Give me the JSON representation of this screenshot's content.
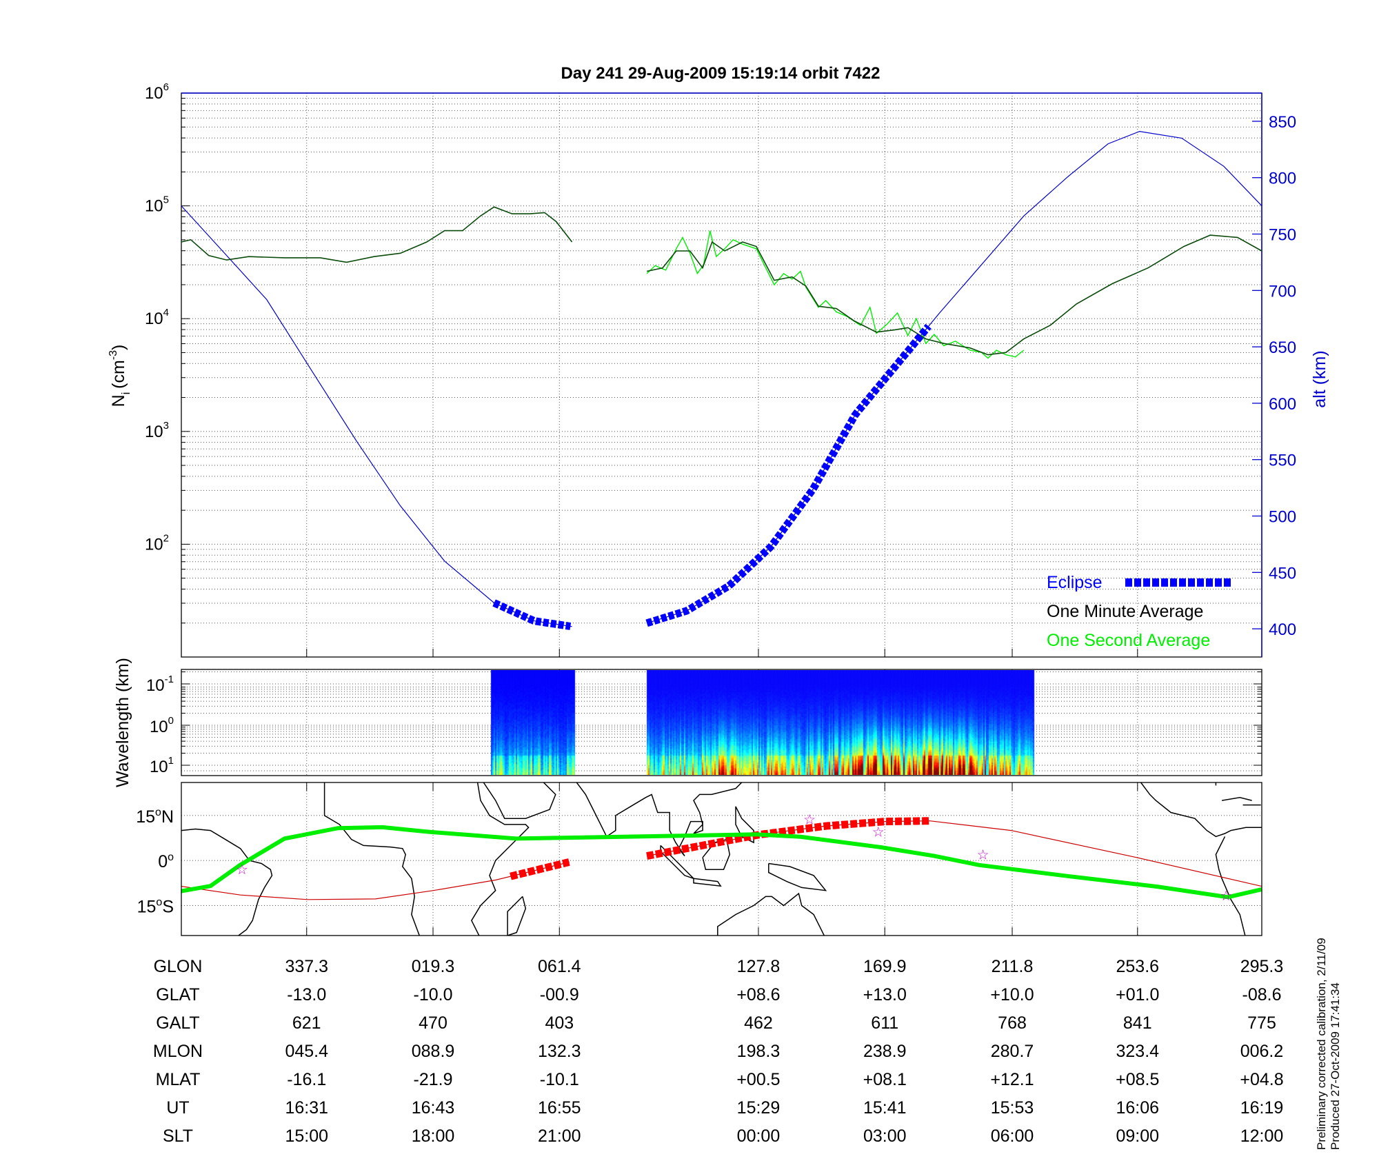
{
  "title": "Day 241  29-Aug-2009 15:19:14   orbit 7422",
  "footer": {
    "line1": "Preliminary corrected calibration, 2/11/09",
    "line2": "Produced 27-Oct-2009 17:41:34"
  },
  "colors": {
    "eclipse": "#0000ff",
    "minute": "#0a4a0a",
    "second": "#00ee00",
    "alt": "#0000cc",
    "track": "#cc0000",
    "track_eclipse": "#ff0000",
    "mag_eq": "#00ee00",
    "star": "#cc00cc"
  },
  "chart_data": [
    {
      "type": "line",
      "name": "density-altitude",
      "title": "Day 241  29-Aug-2009 15:19:14   orbit 7422",
      "xlabel": "",
      "xlim": [
        0,
        102.6
      ],
      "xticks": [
        11.9,
        23.9,
        35.9,
        54.8,
        66.8,
        78.9,
        90.8
      ],
      "ylabel": "N",
      "ylabel_sub": "i",
      "ylabel_unit": "(cm",
      "ylabel_exp": "-3",
      "ylabel_close": ")",
      "yscale": "log",
      "ylim_log10": [
        1,
        6
      ],
      "yticks": [
        {
          "base": "10",
          "exp": "2",
          "v": 2
        },
        {
          "base": "10",
          "exp": "3",
          "v": 3
        },
        {
          "base": "10",
          "exp": "4",
          "v": 4
        },
        {
          "base": "10",
          "exp": "5",
          "v": 5
        },
        {
          "base": "10",
          "exp": "6",
          "v": 6
        }
      ],
      "y2label": "alt (km)",
      "y2lim": [
        375,
        875
      ],
      "y2ticks": [
        "400",
        "450",
        "500",
        "550",
        "600",
        "650",
        "700",
        "750",
        "800",
        "850"
      ],
      "grid": true,
      "legend": {
        "position": "bottom-right",
        "eclipse": "Eclipse",
        "minute": "One Minute Average",
        "second": "One Second Average"
      },
      "series": [
        {
          "name": "One Minute Average",
          "unit": "log10 cm^-3",
          "segments": [
            [
              [
                0,
                4.68
              ],
              [
                0.9,
                4.7
              ],
              [
                2.6,
                4.56
              ],
              [
                4.3,
                4.52
              ],
              [
                6.4,
                4.55
              ],
              [
                9.8,
                4.54
              ],
              [
                13.2,
                4.54
              ],
              [
                15.7,
                4.5
              ],
              [
                18.3,
                4.55
              ],
              [
                20.8,
                4.58
              ],
              [
                23.3,
                4.68
              ],
              [
                25.0,
                4.78
              ],
              [
                26.7,
                4.78
              ],
              [
                28.4,
                4.91
              ],
              [
                29.7,
                4.99
              ],
              [
                31.4,
                4.93
              ],
              [
                33.1,
                4.93
              ],
              [
                34.5,
                4.94
              ],
              [
                35.6,
                4.86
              ],
              [
                37.1,
                4.68
              ]
            ],
            [
              [
                44.2,
                4.42
              ],
              [
                45.7,
                4.45
              ],
              [
                47.0,
                4.6
              ],
              [
                48.3,
                4.6
              ],
              [
                49.5,
                4.45
              ],
              [
                50.4,
                4.68
              ],
              [
                51.6,
                4.6
              ],
              [
                53.3,
                4.68
              ],
              [
                54.6,
                4.64
              ],
              [
                56.3,
                4.34
              ],
              [
                58.0,
                4.37
              ],
              [
                59.3,
                4.29
              ],
              [
                60.5,
                4.11
              ],
              [
                62.2,
                4.09
              ],
              [
                63.9,
                3.98
              ],
              [
                66.0,
                3.88
              ],
              [
                67.7,
                3.9
              ],
              [
                69.0,
                3.92
              ],
              [
                70.7,
                3.82
              ],
              [
                72.4,
                3.78
              ],
              [
                74.9,
                3.74
              ],
              [
                76.6,
                3.68
              ],
              [
                78.3,
                3.7
              ],
              [
                80.0,
                3.82
              ],
              [
                82.5,
                3.94
              ],
              [
                85.0,
                4.13
              ],
              [
                88.4,
                4.31
              ],
              [
                91.8,
                4.45
              ],
              [
                95.2,
                4.64
              ],
              [
                97.7,
                4.74
              ],
              [
                100.3,
                4.72
              ],
              [
                102.6,
                4.6
              ]
            ]
          ]
        },
        {
          "name": "One Second Average",
          "unit": "log10 cm^-3",
          "segments": [
            [
              [
                44.2,
                4.4
              ],
              [
                45,
                4.47
              ],
              [
                46,
                4.43
              ],
              [
                47,
                4.62
              ],
              [
                47.6,
                4.72
              ],
              [
                48.3,
                4.58
              ],
              [
                49,
                4.4
              ],
              [
                49.6,
                4.48
              ],
              [
                50.2,
                4.78
              ],
              [
                50.8,
                4.55
              ],
              [
                51.6,
                4.62
              ],
              [
                52.4,
                4.7
              ],
              [
                53.3,
                4.66
              ],
              [
                54.6,
                4.62
              ],
              [
                55.5,
                4.45
              ],
              [
                56.3,
                4.3
              ],
              [
                57.2,
                4.4
              ],
              [
                58,
                4.35
              ],
              [
                58.8,
                4.42
              ],
              [
                59.3,
                4.28
              ],
              [
                60.5,
                4.1
              ],
              [
                61.2,
                4.16
              ],
              [
                62.2,
                4.06
              ],
              [
                63.2,
                4.02
              ],
              [
                64.5,
                3.94
              ],
              [
                65.4,
                4.1
              ],
              [
                66,
                3.87
              ],
              [
                67,
                3.95
              ],
              [
                68,
                4.05
              ],
              [
                69,
                3.85
              ],
              [
                69.8,
                4.0
              ],
              [
                70.7,
                3.78
              ],
              [
                71.5,
                3.86
              ],
              [
                72.4,
                3.76
              ],
              [
                73.5,
                3.8
              ],
              [
                74.9,
                3.72
              ],
              [
                76,
                3.7
              ],
              [
                76.6,
                3.65
              ],
              [
                77.4,
                3.72
              ],
              [
                78.3,
                3.68
              ],
              [
                79.2,
                3.66
              ],
              [
                80.0,
                3.72
              ]
            ]
          ]
        },
        {
          "name": "Altitude",
          "unit": "km",
          "segments": [
            [
              [
                0,
                775
              ],
              [
                4.3,
                731
              ],
              [
                8.1,
                692
              ],
              [
                12.3,
                630
              ],
              [
                16.6,
                567
              ],
              [
                20.8,
                509
              ],
              [
                25.0,
                460
              ],
              [
                29.7,
                423
              ],
              [
                33.5,
                407
              ],
              [
                37.1,
                402
              ]
            ],
            [
              [
                44.2,
                405
              ],
              [
                48,
                416
              ],
              [
                52,
                438
              ],
              [
                56,
                473
              ],
              [
                60,
                524
              ],
              [
                64,
                590
              ],
              [
                68,
                635
              ],
              [
                72,
                680
              ],
              [
                76,
                723
              ],
              [
                80,
                766
              ],
              [
                84.2,
                801
              ],
              [
                88,
                830
              ],
              [
                91,
                841
              ],
              [
                95,
                835
              ],
              [
                99,
                810
              ],
              [
                102.6,
                775
              ]
            ]
          ]
        }
      ],
      "eclipse_ranges": [
        [
          29.7,
          37.1
        ],
        [
          44.2,
          71.1
        ]
      ]
    },
    {
      "type": "heatmap",
      "name": "wavelength-spectrogram",
      "ylabel": "Wavelength (km)",
      "yticks": [
        {
          "base": "10",
          "exp": "-1"
        },
        {
          "base": "10",
          "exp": "0"
        },
        {
          "base": "10",
          "exp": "1"
        }
      ],
      "data_ranges": [
        [
          29.4,
          37.3
        ],
        [
          44.2,
          80.9
        ]
      ],
      "colormap": "jet"
    },
    {
      "type": "map",
      "name": "orbit-track-map",
      "lon_range": [
        295.3,
        655.3
      ],
      "lat_range": [
        -25,
        26
      ],
      "yticks": [
        {
          "label": "15",
          "suffix": "N",
          "v": 15
        },
        {
          "label": "0",
          "suffix": "",
          "v": 0
        },
        {
          "label": "15",
          "suffix": "S",
          "v": -15
        }
      ],
      "orbit_track": [
        [
          [
            295.3,
            -8.6
          ],
          [
            315,
            -11.5
          ],
          [
            337.3,
            -13
          ],
          [
            360,
            -12.8
          ],
          [
            379.3,
            -10
          ],
          [
            400,
            -6.5
          ],
          [
            424.6,
            -0.5
          ]
        ],
        [
          [
            450.4,
            1.5
          ],
          [
            487.8,
            8.6
          ],
          [
            510,
            11.5
          ],
          [
            529.9,
            13
          ],
          [
            544.7,
            13.2
          ],
          [
            571.8,
            10
          ],
          [
            613.6,
            1
          ],
          [
            655.3,
            -8.6
          ]
        ]
      ],
      "eclipse_lon_ranges": [
        [
          405,
          424.6
        ],
        [
          450.4,
          544.7
        ]
      ],
      "magnetic_equator": [
        [
          295.3,
          -10.2
        ],
        [
          305,
          -8.5
        ],
        [
          314.9,
          -1.5
        ],
        [
          329.7,
          7.3
        ],
        [
          347.5,
          10.8
        ],
        [
          362.3,
          11.1
        ],
        [
          377.1,
          9.6
        ],
        [
          406.8,
          7.3
        ],
        [
          442.4,
          7.9
        ],
        [
          486.8,
          8.7
        ],
        [
          501.7,
          7.9
        ],
        [
          528.4,
          4.4
        ],
        [
          546.2,
          1.5
        ],
        [
          561.0,
          -1.5
        ],
        [
          590.6,
          -5.2
        ],
        [
          620.3,
          -8.7
        ],
        [
          644.0,
          -12.2
        ],
        [
          655.3,
          -9.6
        ]
      ],
      "stars": [
        [
          315.5,
          -2.9
        ],
        [
          504.6,
          13.7
        ],
        [
          527.5,
          9.6
        ],
        [
          562.4,
          2.0
        ],
        [
          643.4,
          -11.7
        ]
      ]
    }
  ],
  "table": {
    "tick_x": [
      11.9,
      23.9,
      35.9,
      54.8,
      66.8,
      78.9,
      90.8,
      102.6
    ],
    "rows": [
      {
        "label": "GLON",
        "values": [
          "337.3",
          "019.3",
          "061.4",
          "127.8",
          "169.9",
          "211.8",
          "253.6",
          "295.3"
        ]
      },
      {
        "label": "GLAT",
        "values": [
          "-13.0",
          "-10.0",
          "-00.9",
          "+08.6",
          "+13.0",
          "+10.0",
          "+01.0",
          "-08.6"
        ]
      },
      {
        "label": "GALT",
        "values": [
          "621",
          "470",
          "403",
          "462",
          "611",
          "768",
          "841",
          "775"
        ]
      },
      {
        "label": "MLON",
        "values": [
          "045.4",
          "088.9",
          "132.3",
          "198.3",
          "238.9",
          "280.7",
          "323.4",
          "006.2"
        ]
      },
      {
        "label": "MLAT",
        "values": [
          "-16.1",
          "-21.9",
          "-10.1",
          "+00.5",
          "+08.1",
          "+12.1",
          "+08.5",
          "+04.8"
        ]
      },
      {
        "label": "UT",
        "values": [
          "16:31",
          "16:43",
          "16:55",
          "15:29",
          "15:41",
          "15:53",
          "16:06",
          "16:19"
        ]
      },
      {
        "label": "SLT",
        "values": [
          "15:00",
          "18:00",
          "21:00",
          "00:00",
          "03:00",
          "06:00",
          "09:00",
          "12:00"
        ]
      }
    ]
  }
}
